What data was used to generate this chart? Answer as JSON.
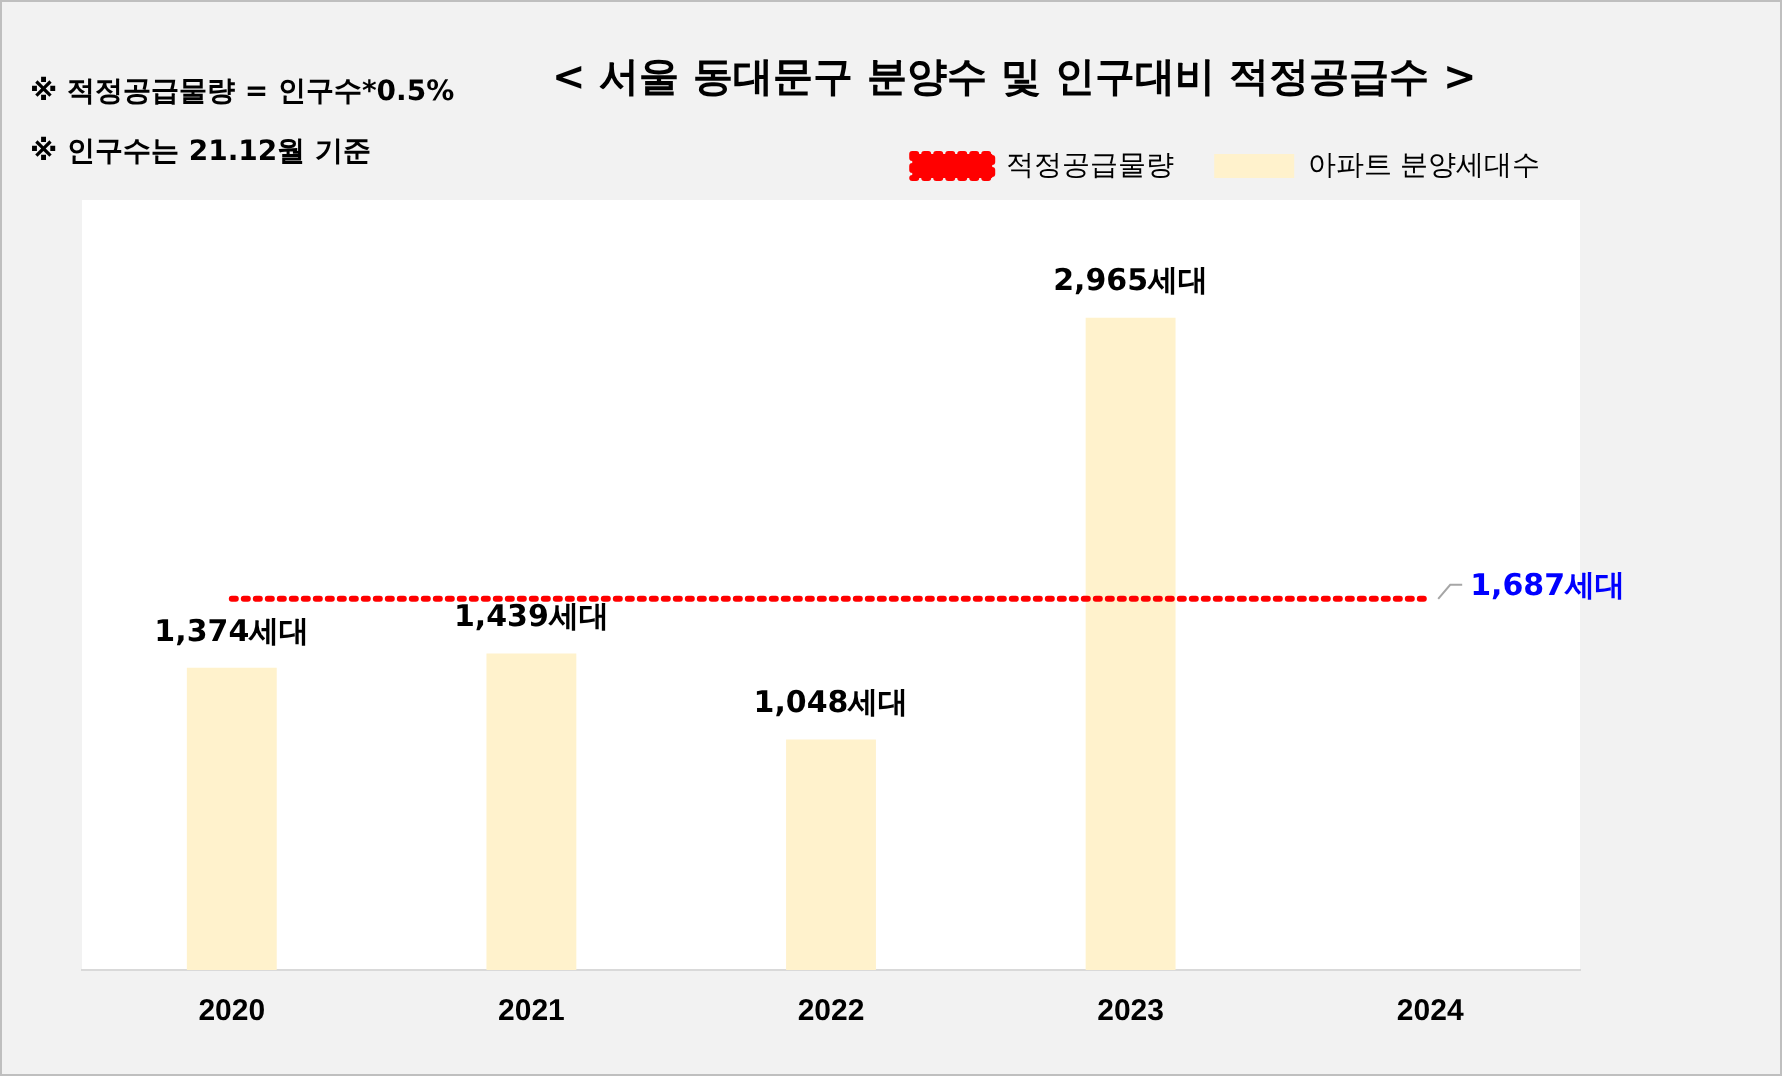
{
  "chart_data": {
    "type": "bar",
    "title": "< 서울 동대문구 분양수 및 인구대비 적정공급수 >",
    "annotations": [
      "※ 적정공급물량 = 인구수*0.5%",
      "※ 인구수는 21.12월 기준"
    ],
    "categories": [
      "2020",
      "2021",
      "2022",
      "2023",
      "2024"
    ],
    "series": [
      {
        "name": "아파트 분양세대수",
        "color": "#fff2cc",
        "values": [
          1374,
          1439,
          1048,
          2965,
          null
        ],
        "value_labels": [
          "1,374세대",
          "1,439세대",
          "1,048세대",
          "2,965세대",
          null
        ]
      },
      {
        "name": "적정공급물량",
        "type": "line",
        "color": "#ff0000",
        "line_style": "dotted",
        "marker": "none",
        "values": [
          1687,
          1687,
          1687,
          1687,
          1687
        ],
        "value_labels": [
          null,
          null,
          null,
          null,
          "1,687세대"
        ]
      }
    ],
    "legend": "top right",
    "grid": false,
    "tick_labels": "x"
  }
}
